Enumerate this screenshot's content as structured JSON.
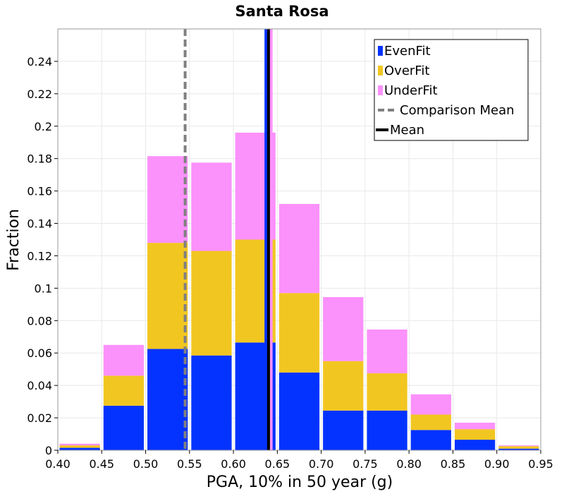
{
  "chart_data": {
    "type": "bar",
    "stacked": true,
    "title": "Santa Rosa",
    "xlabel": "PGA, 10% in 50 year (g)",
    "ylabel": "Fraction",
    "xlim": [
      0.4,
      0.95
    ],
    "ylim": [
      0,
      0.26
    ],
    "grid": true,
    "legend_position": "top-right",
    "x_ticks": [
      "0.40",
      "0.45",
      "0.50",
      "0.55",
      "0.60",
      "0.65",
      "0.70",
      "0.75",
      "0.80",
      "0.85",
      "0.90",
      "0.95"
    ],
    "y_ticks": [
      "0",
      "0.02",
      "0.04",
      "0.06",
      "0.08",
      "0.1",
      "0.12",
      "0.14",
      "0.16",
      "0.18",
      "0.2",
      "0.22",
      "0.24"
    ],
    "bin_width": 0.05,
    "bin_starts": [
      0.4,
      0.45,
      0.5,
      0.55,
      0.6,
      0.65,
      0.7,
      0.75,
      0.8,
      0.85,
      0.9
    ],
    "series": [
      {
        "name": "EvenFit",
        "color": "#0433ff",
        "values": [
          0.0015,
          0.0275,
          0.0625,
          0.0585,
          0.0665,
          0.048,
          0.0245,
          0.0245,
          0.0125,
          0.0065,
          0.001
        ]
      },
      {
        "name": "OverFit",
        "color": "#f2c621",
        "values": [
          0.0015,
          0.0185,
          0.0655,
          0.0645,
          0.0635,
          0.049,
          0.0305,
          0.023,
          0.0095,
          0.0065,
          0.0015
        ]
      },
      {
        "name": "UnderFit",
        "color": "#fb91fb",
        "values": [
          0.001,
          0.019,
          0.0535,
          0.0545,
          0.066,
          0.055,
          0.0395,
          0.027,
          0.0125,
          0.004,
          0.0005
        ]
      }
    ],
    "lines": [
      {
        "name": "Comparison Mean",
        "x": 0.545,
        "color": "#808080",
        "style": "dashed",
        "label": "Comparison Mean"
      },
      {
        "name": "EvenFit mean",
        "x": 0.637,
        "color": "#0433ff",
        "style": "solid"
      },
      {
        "name": "UnderFit mean",
        "x": 0.643,
        "color": "#fb91fb",
        "style": "solid"
      },
      {
        "name": "Mean",
        "x": 0.64,
        "color": "#000000",
        "style": "solid",
        "label": "Mean"
      }
    ],
    "legend": [
      "EvenFit",
      "OverFit",
      "UnderFit",
      "Comparison Mean",
      "Mean"
    ]
  }
}
